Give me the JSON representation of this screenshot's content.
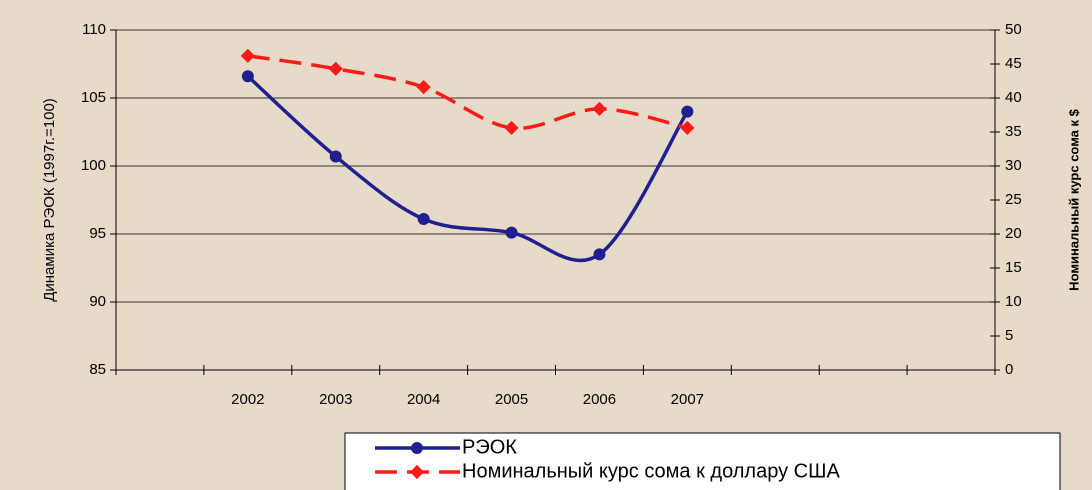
{
  "chart_data": {
    "type": "line",
    "categories": [
      null,
      "2002",
      "2003",
      "2004",
      "2005",
      "2006",
      "2007",
      null,
      null,
      null
    ],
    "series": [
      {
        "name": "РЭОК",
        "color": "#1f1f8f",
        "values": [
          null,
          106.6,
          100.7,
          96.1,
          95.1,
          93.5,
          104.0,
          null,
          null,
          null
        ]
      },
      {
        "name": "Номинальный курс сома к доллару США",
        "color": "#ff1a1a",
        "axis": "y2",
        "dash": true,
        "values": [
          null,
          46.2,
          44.3,
          41.6,
          35.6,
          38.4,
          35.6,
          null,
          null,
          null
        ]
      }
    ],
    "ylabel": "Динамика РЭОК (1997г.=100)",
    "y2label": "Номинальный курс сома к $",
    "ylim": [
      85,
      110
    ],
    "yticks": [
      85,
      90,
      95,
      100,
      105,
      110
    ],
    "y2lim": [
      0,
      50
    ],
    "y2ticks": [
      0,
      5,
      10,
      15,
      20,
      25,
      30,
      35,
      40,
      45,
      50
    ],
    "grid": true
  }
}
